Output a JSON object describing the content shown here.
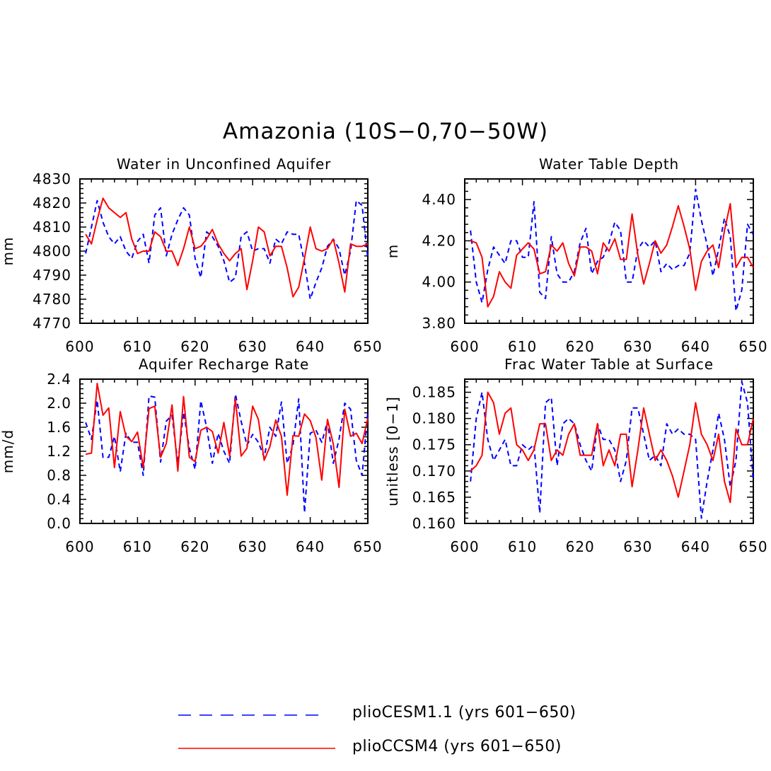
{
  "title": "Amazonia (10S−0,70−50W)",
  "colors": {
    "pliocesm": "#0000ff",
    "pliocsm4": "#ff0000",
    "axis": "#000000"
  },
  "legend": [
    {
      "label": "plioCESM1.1 (yrs 601−650)",
      "color": "#0000ff",
      "style": "dashed"
    },
    {
      "label": "plioCCSM4 (yrs 601−650)",
      "color": "#ff0000",
      "style": "solid"
    }
  ],
  "chart_data": [
    {
      "type": "line",
      "title": "Water in Unconfined Aquifer",
      "xlabel": "",
      "ylabel": "mm",
      "xlim": [
        600,
        650
      ],
      "ylim": [
        4770,
        4830
      ],
      "xticks": [
        "600",
        "610",
        "620",
        "630",
        "640",
        "650"
      ],
      "yticks": [
        "4770",
        "4780",
        "4790",
        "4800",
        "4810",
        "4820",
        "4830"
      ],
      "x": [
        601,
        602,
        603,
        604,
        605,
        606,
        607,
        608,
        609,
        610,
        611,
        612,
        613,
        614,
        615,
        616,
        617,
        618,
        619,
        620,
        621,
        622,
        623,
        624,
        625,
        626,
        627,
        628,
        629,
        630,
        631,
        632,
        633,
        634,
        635,
        636,
        637,
        638,
        639,
        640,
        641,
        642,
        643,
        644,
        645,
        646,
        647,
        648,
        649,
        650
      ],
      "series": [
        {
          "name": "plioCESM1.1 (yrs 601−650)",
          "values": [
            4799,
            4810,
            4821,
            4812,
            4806,
            4803,
            4806,
            4800,
            4797,
            4804,
            4807,
            4795,
            4815,
            4818,
            4798,
            4807,
            4813,
            4818,
            4815,
            4797,
            4789,
            4808,
            4806,
            4802,
            4796,
            4787,
            4789,
            4806,
            4808,
            4800,
            4801,
            4801,
            4795,
            4805,
            4803,
            4808,
            4807,
            4807,
            4795,
            4780,
            4787,
            4793,
            4802,
            4805,
            4801,
            4790,
            4800,
            4821,
            4819,
            4797
          ]
        },
        {
          "name": "plioCCSM4 (yrs 601−650)",
          "values": [
            4807,
            4803,
            4813,
            4822,
            4818,
            4816,
            4814,
            4816,
            4805,
            4799,
            4800,
            4800,
            4808,
            4806,
            4800,
            4800,
            4794,
            4801,
            4810,
            4801,
            4802,
            4805,
            4809,
            4803,
            4799,
            4796,
            4799,
            4801,
            4784,
            4796,
            4810,
            4808,
            4798,
            4802,
            4802,
            4793,
            4781,
            4785,
            4797,
            4810,
            4801,
            4800,
            4801,
            4805,
            4795,
            4783,
            4803,
            4802,
            4802,
            4803
          ]
        }
      ]
    },
    {
      "type": "line",
      "title": "Water Table Depth",
      "xlabel": "",
      "ylabel": "m",
      "xlim": [
        600,
        650
      ],
      "ylim": [
        3.8,
        4.5
      ],
      "xticks": [
        "600",
        "610",
        "620",
        "630",
        "640",
        "650"
      ],
      "yticks": [
        "3.80",
        "4.00",
        "4.20",
        "4.40"
      ],
      "yticks_values": [
        3.8,
        4.0,
        4.2,
        4.4
      ],
      "x": [
        601,
        602,
        603,
        604,
        605,
        606,
        607,
        608,
        609,
        610,
        611,
        612,
        613,
        614,
        615,
        616,
        617,
        618,
        619,
        620,
        621,
        622,
        623,
        624,
        625,
        626,
        627,
        628,
        629,
        630,
        631,
        632,
        633,
        634,
        635,
        636,
        637,
        638,
        639,
        640,
        641,
        642,
        643,
        644,
        645,
        646,
        647,
        648,
        649,
        650
      ],
      "series": [
        {
          "name": "plioCESM1.1 (yrs 601−650)",
          "values": [
            4.25,
            4.0,
            3.9,
            4.06,
            4.17,
            4.13,
            4.09,
            4.2,
            4.2,
            4.12,
            4.12,
            4.39,
            3.95,
            3.92,
            4.22,
            4.04,
            4.0,
            4.0,
            4.05,
            4.19,
            4.26,
            4.04,
            4.1,
            4.12,
            4.19,
            4.29,
            4.25,
            4.0,
            4.0,
            4.16,
            4.2,
            4.17,
            4.2,
            4.05,
            4.09,
            4.06,
            4.08,
            4.08,
            4.14,
            4.45,
            4.3,
            4.18,
            4.03,
            4.16,
            4.31,
            4.22,
            3.86,
            3.96,
            4.28,
            4.23
          ]
        },
        {
          "name": "plioCCSM4 (yrs 601−650)",
          "values": [
            4.2,
            4.19,
            4.12,
            3.88,
            3.93,
            4.05,
            4.0,
            3.97,
            4.13,
            4.16,
            4.19,
            4.16,
            4.04,
            4.05,
            4.18,
            4.15,
            4.19,
            4.09,
            4.03,
            4.17,
            4.17,
            4.15,
            4.04,
            4.19,
            4.15,
            4.21,
            4.11,
            4.11,
            4.33,
            4.13,
            3.99,
            4.09,
            4.2,
            4.14,
            4.18,
            4.27,
            4.37,
            4.27,
            4.16,
            3.96,
            4.1,
            4.15,
            4.18,
            4.07,
            4.25,
            4.38,
            4.07,
            4.12,
            4.12,
            4.07
          ]
        }
      ]
    },
    {
      "type": "line",
      "title": "Aquifer Recharge Rate",
      "xlabel": "",
      "ylabel": "mm/d",
      "xlim": [
        600,
        650
      ],
      "ylim": [
        0.0,
        2.4
      ],
      "xticks": [
        "600",
        "610",
        "620",
        "630",
        "640",
        "650"
      ],
      "yticks": [
        "0.0",
        "0.4",
        "0.8",
        "1.2",
        "1.6",
        "2.0",
        "2.4"
      ],
      "x": [
        601,
        602,
        603,
        604,
        605,
        606,
        607,
        608,
        609,
        610,
        611,
        612,
        613,
        614,
        615,
        616,
        617,
        618,
        619,
        620,
        621,
        622,
        623,
        624,
        625,
        626,
        627,
        628,
        629,
        630,
        631,
        632,
        633,
        634,
        635,
        636,
        637,
        638,
        639,
        640,
        641,
        642,
        643,
        644,
        645,
        646,
        647,
        648,
        649,
        650
      ],
      "series": [
        {
          "name": "plioCESM1.1 (yrs 601−650)",
          "values": [
            1.68,
            1.4,
            2.05,
            1.1,
            1.1,
            1.45,
            0.86,
            1.5,
            1.35,
            1.35,
            0.8,
            2.12,
            2.1,
            1.02,
            1.7,
            1.8,
            1.0,
            1.85,
            1.25,
            0.9,
            2.04,
            1.6,
            1.0,
            1.5,
            1.2,
            1.0,
            2.15,
            1.7,
            1.3,
            1.48,
            1.35,
            1.1,
            1.6,
            1.45,
            2.02,
            1.0,
            1.3,
            2.07,
            0.18,
            1.5,
            1.55,
            1.35,
            1.7,
            1.0,
            1.4,
            2.0,
            1.9,
            1.05,
            0.8,
            1.85
          ]
        },
        {
          "name": "plioCCSM4 (yrs 601−650)",
          "values": [
            1.15,
            1.17,
            2.33,
            1.8,
            1.92,
            0.93,
            1.86,
            1.45,
            1.36,
            1.52,
            0.93,
            1.91,
            1.95,
            1.1,
            1.33,
            1.97,
            0.87,
            2.11,
            1.1,
            1.03,
            1.55,
            1.6,
            1.53,
            1.17,
            1.68,
            1.12,
            2.07,
            1.12,
            1.25,
            1.95,
            1.73,
            1.05,
            1.28,
            1.72,
            1.45,
            0.47,
            1.46,
            1.45,
            1.82,
            1.71,
            1.43,
            0.72,
            1.73,
            1.32,
            0.6,
            1.9,
            1.45,
            1.5,
            1.33,
            1.75
          ]
        }
      ]
    },
    {
      "type": "line",
      "title": "Frac Water Table at Surface",
      "xlabel": "",
      "ylabel": "unitless [0−1]",
      "xlim": [
        600,
        650
      ],
      "ylim": [
        0.16,
        0.1875
      ],
      "xticks": [
        "600",
        "610",
        "620",
        "630",
        "640",
        "650"
      ],
      "yticks": [
        "0.160",
        "0.165",
        "0.170",
        "0.175",
        "0.180",
        "0.185"
      ],
      "x": [
        601,
        602,
        603,
        604,
        605,
        606,
        607,
        608,
        609,
        610,
        611,
        612,
        613,
        614,
        615,
        616,
        617,
        618,
        619,
        620,
        621,
        622,
        623,
        624,
        625,
        626,
        627,
        628,
        629,
        630,
        631,
        632,
        633,
        634,
        635,
        636,
        637,
        638,
        639,
        640,
        641,
        642,
        643,
        644,
        645,
        646,
        647,
        648,
        649,
        650
      ],
      "series": [
        {
          "name": "plioCESM1.1 (yrs 601−650)",
          "values": [
            0.168,
            0.18,
            0.185,
            0.176,
            0.172,
            0.174,
            0.176,
            0.171,
            0.171,
            0.175,
            0.174,
            0.175,
            0.162,
            0.183,
            0.184,
            0.171,
            0.179,
            0.18,
            0.179,
            0.175,
            0.172,
            0.17,
            0.179,
            0.176,
            0.176,
            0.174,
            0.168,
            0.172,
            0.182,
            0.182,
            0.177,
            0.172,
            0.173,
            0.171,
            0.179,
            0.177,
            0.178,
            0.177,
            0.177,
            0.176,
            0.161,
            0.168,
            0.174,
            0.181,
            0.176,
            0.167,
            0.172,
            0.187,
            0.183,
            0.168
          ]
        },
        {
          "name": "plioCCSM4 (yrs 601−650)",
          "values": [
            0.17,
            0.171,
            0.173,
            0.185,
            0.183,
            0.177,
            0.181,
            0.182,
            0.175,
            0.174,
            0.172,
            0.174,
            0.179,
            0.179,
            0.172,
            0.174,
            0.173,
            0.177,
            0.179,
            0.173,
            0.173,
            0.173,
            0.179,
            0.171,
            0.174,
            0.171,
            0.177,
            0.177,
            0.167,
            0.174,
            0.182,
            0.177,
            0.172,
            0.174,
            0.172,
            0.169,
            0.165,
            0.17,
            0.175,
            0.183,
            0.177,
            0.175,
            0.172,
            0.177,
            0.168,
            0.164,
            0.178,
            0.175,
            0.175,
            0.18
          ]
        }
      ]
    }
  ]
}
